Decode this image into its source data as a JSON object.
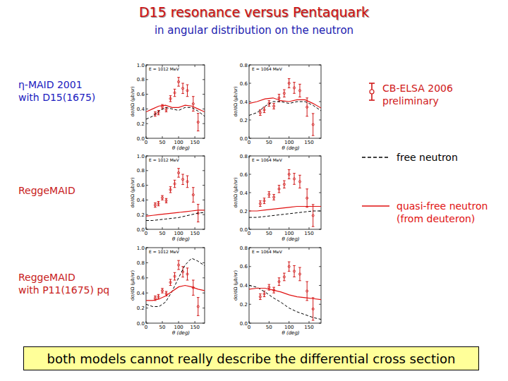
{
  "header": {
    "title": "D15 resonance versus Pentaquark",
    "subtitle": "in angular distribution on the neutron"
  },
  "row_labels": [
    [
      "η-MAID 2001",
      "with D15(1675)"
    ],
    [
      "ReggeMAID"
    ],
    [
      "ReggeMAID",
      "with P11(1675) pq"
    ]
  ],
  "footer": "both models cannot really describe the differential cross section",
  "chart_data": [
    {
      "type": "scatter",
      "title": "E = 1012 MeV",
      "x_label": "θ (deg)",
      "y_label": "dσ/dΩ (μb/sr)",
      "xlim": [
        0,
        180
      ],
      "xticks": [
        0,
        50,
        100,
        150
      ],
      "ylim": [
        0,
        1.0
      ],
      "yticks": [
        {
          "value": 0,
          "label": "0.0"
        },
        0.2,
        0.4,
        0.6,
        0.8,
        {
          "value": 1,
          "label": "1.0"
        }
      ],
      "series": [
        {
          "name": "CB-ELSA 2006 preliminary",
          "type": "scatter",
          "marker": "circle",
          "color": "#d01818",
          "x": [
            28,
            38,
            50,
            62,
            75,
            88,
            100,
            113,
            127,
            145,
            160
          ],
          "values": [
            0.33,
            0.35,
            0.43,
            0.39,
            0.54,
            0.62,
            0.77,
            0.68,
            0.65,
            0.47,
            0.22
          ],
          "errors": [
            0.03,
            0.03,
            0.03,
            0.03,
            0.04,
            0.05,
            0.06,
            0.07,
            0.08,
            0.1,
            0.12
          ]
        },
        {
          "name": "free neutron",
          "type": "line",
          "line_style": "dashed",
          "color": "#000000",
          "x": [
            0,
            20,
            40,
            60,
            80,
            100,
            120,
            140,
            160,
            180
          ],
          "values": [
            0.26,
            0.3,
            0.37,
            0.42,
            0.4,
            0.38,
            0.42,
            0.42,
            0.37,
            0.3
          ]
        },
        {
          "name": "quasi-free neutron (from deuteron)",
          "type": "line",
          "line_style": "solid",
          "color": "#e01010",
          "x": [
            0,
            20,
            40,
            60,
            80,
            100,
            120,
            140,
            160,
            180
          ],
          "values": [
            0.36,
            0.4,
            0.44,
            0.45,
            0.42,
            0.42,
            0.45,
            0.44,
            0.4,
            0.36
          ]
        }
      ]
    },
    {
      "type": "scatter",
      "title": "E = 1064 MeV",
      "x_label": "θ (deg)",
      "y_label": "dσ/dΩ (μb/sr)",
      "xlim": [
        0,
        180
      ],
      "xticks": [
        0,
        50,
        100,
        150
      ],
      "ylim": [
        0,
        0.8
      ],
      "yticks": [
        {
          "value": 0,
          "label": "0.0"
        },
        0.2,
        0.4,
        0.6,
        0.8
      ],
      "series": [
        {
          "type": "scatter",
          "marker": "circle",
          "color": "#d01818",
          "x": [
            28,
            38,
            50,
            62,
            75,
            88,
            100,
            113,
            127,
            145,
            160
          ],
          "values": [
            0.28,
            0.31,
            0.38,
            0.35,
            0.44,
            0.49,
            0.6,
            0.55,
            0.52,
            0.34,
            0.15
          ],
          "errors": [
            0.03,
            0.03,
            0.03,
            0.03,
            0.04,
            0.04,
            0.05,
            0.06,
            0.07,
            0.1,
            0.12
          ]
        },
        {
          "type": "line",
          "line_style": "dashed",
          "color": "#000000",
          "x": [
            0,
            20,
            40,
            60,
            80,
            100,
            120,
            140,
            160,
            180
          ],
          "values": [
            0.25,
            0.28,
            0.35,
            0.4,
            0.4,
            0.38,
            0.4,
            0.4,
            0.36,
            0.3
          ]
        },
        {
          "type": "line",
          "line_style": "solid",
          "color": "#e01010",
          "x": [
            0,
            20,
            40,
            60,
            80,
            100,
            120,
            140,
            160,
            180
          ],
          "values": [
            0.38,
            0.4,
            0.43,
            0.44,
            0.41,
            0.4,
            0.42,
            0.42,
            0.38,
            0.33
          ]
        }
      ]
    },
    {
      "type": "scatter",
      "title": "E = 1012 MeV",
      "x_label": "θ (deg)",
      "y_label": "dσ/dΩ (μb/sr)",
      "xlim": [
        0,
        180
      ],
      "xticks": [
        0,
        50,
        100,
        150
      ],
      "ylim": [
        0,
        1.0
      ],
      "yticks": [
        {
          "value": 0,
          "label": "0.0"
        },
        0.2,
        0.4,
        0.6,
        0.8,
        {
          "value": 1,
          "label": "1.0"
        }
      ],
      "series": [
        {
          "type": "scatter",
          "marker": "circle",
          "color": "#d01818",
          "x": [
            28,
            38,
            50,
            62,
            75,
            88,
            100,
            113,
            127,
            145,
            160
          ],
          "values": [
            0.33,
            0.35,
            0.43,
            0.39,
            0.54,
            0.62,
            0.77,
            0.68,
            0.65,
            0.47,
            0.22
          ],
          "errors": [
            0.03,
            0.03,
            0.03,
            0.03,
            0.04,
            0.05,
            0.06,
            0.07,
            0.08,
            0.1,
            0.12
          ]
        },
        {
          "type": "line",
          "line_style": "dashed",
          "color": "#000000",
          "x": [
            0,
            20,
            40,
            60,
            80,
            100,
            120,
            140,
            160,
            180
          ],
          "values": [
            0.12,
            0.12,
            0.13,
            0.14,
            0.15,
            0.16,
            0.18,
            0.2,
            0.22,
            0.23
          ]
        },
        {
          "type": "line",
          "line_style": "solid",
          "color": "#e01010",
          "x": [
            0,
            20,
            40,
            60,
            80,
            100,
            120,
            140,
            160,
            180
          ],
          "values": [
            0.18,
            0.19,
            0.2,
            0.21,
            0.22,
            0.23,
            0.24,
            0.25,
            0.26,
            0.26
          ]
        }
      ]
    },
    {
      "type": "scatter",
      "title": "E = 1064 MeV",
      "x_label": "θ (deg)",
      "y_label": "dσ/dΩ (μb/sr)",
      "xlim": [
        0,
        180
      ],
      "xticks": [
        0,
        50,
        100,
        150
      ],
      "ylim": [
        0,
        0.8
      ],
      "yticks": [
        {
          "value": 0,
          "label": "0.0"
        },
        0.2,
        0.4,
        0.6,
        0.8
      ],
      "series": [
        {
          "type": "scatter",
          "marker": "circle",
          "color": "#d01818",
          "x": [
            28,
            38,
            50,
            62,
            75,
            88,
            100,
            113,
            127,
            145,
            160
          ],
          "values": [
            0.28,
            0.31,
            0.38,
            0.35,
            0.44,
            0.49,
            0.6,
            0.55,
            0.52,
            0.34,
            0.15
          ],
          "errors": [
            0.03,
            0.03,
            0.03,
            0.03,
            0.04,
            0.04,
            0.05,
            0.06,
            0.07,
            0.1,
            0.12
          ]
        },
        {
          "type": "line",
          "line_style": "dashed",
          "color": "#000000",
          "x": [
            0,
            20,
            40,
            60,
            80,
            100,
            120,
            140,
            160,
            180
          ],
          "values": [
            0.13,
            0.13,
            0.14,
            0.15,
            0.16,
            0.17,
            0.18,
            0.19,
            0.2,
            0.2
          ]
        },
        {
          "type": "line",
          "line_style": "solid",
          "color": "#e01010",
          "x": [
            0,
            20,
            40,
            60,
            80,
            100,
            120,
            140,
            160,
            180
          ],
          "values": [
            0.2,
            0.2,
            0.21,
            0.22,
            0.23,
            0.24,
            0.25,
            0.25,
            0.25,
            0.25
          ]
        }
      ]
    },
    {
      "type": "scatter",
      "title": "E = 1012 MeV",
      "x_label": "θ (deg)",
      "y_label": "dσ/dΩ (μb/sr)",
      "xlim": [
        0,
        180
      ],
      "xticks": [
        0,
        50,
        100,
        150
      ],
      "ylim": [
        0,
        1.0
      ],
      "yticks": [
        {
          "value": 0,
          "label": "0.0"
        },
        0.2,
        0.4,
        0.6,
        0.8,
        {
          "value": 1,
          "label": "1.0"
        }
      ],
      "series": [
        {
          "type": "scatter",
          "marker": "circle",
          "color": "#d01818",
          "x": [
            28,
            38,
            50,
            62,
            75,
            88,
            100,
            113,
            127,
            145,
            160
          ],
          "values": [
            0.33,
            0.35,
            0.43,
            0.39,
            0.54,
            0.62,
            0.77,
            0.68,
            0.65,
            0.47,
            0.22
          ],
          "errors": [
            0.03,
            0.03,
            0.03,
            0.03,
            0.04,
            0.05,
            0.06,
            0.07,
            0.08,
            0.1,
            0.12
          ]
        },
        {
          "type": "line",
          "line_style": "dashed",
          "color": "#000000",
          "x": [
            0,
            20,
            40,
            60,
            80,
            100,
            120,
            140,
            160,
            180
          ],
          "values": [
            0.25,
            0.22,
            0.22,
            0.28,
            0.42,
            0.6,
            0.77,
            0.86,
            0.82,
            0.76
          ]
        },
        {
          "type": "line",
          "line_style": "solid",
          "color": "#e01010",
          "x": [
            0,
            20,
            40,
            60,
            80,
            100,
            120,
            140,
            160,
            180
          ],
          "values": [
            0.3,
            0.3,
            0.32,
            0.36,
            0.42,
            0.48,
            0.5,
            0.48,
            0.45,
            0.43
          ]
        }
      ]
    },
    {
      "type": "scatter",
      "title": "E = 1064 MeV",
      "x_label": "θ (deg)",
      "y_label": "dσ/dΩ (μb/sr)",
      "xlim": [
        0,
        180
      ],
      "xticks": [
        0,
        50,
        100,
        150
      ],
      "ylim": [
        0,
        0.8
      ],
      "yticks": [
        {
          "value": 0,
          "label": "0.0"
        },
        0.2,
        0.4,
        0.6,
        0.8
      ],
      "series": [
        {
          "type": "scatter",
          "marker": "circle",
          "color": "#d01818",
          "x": [
            28,
            38,
            50,
            62,
            75,
            88,
            100,
            113,
            127,
            145,
            160
          ],
          "values": [
            0.28,
            0.31,
            0.38,
            0.35,
            0.44,
            0.49,
            0.6,
            0.55,
            0.52,
            0.34,
            0.15
          ],
          "errors": [
            0.03,
            0.03,
            0.03,
            0.03,
            0.04,
            0.04,
            0.05,
            0.06,
            0.07,
            0.1,
            0.12
          ]
        },
        {
          "type": "line",
          "line_style": "dashed",
          "color": "#000000",
          "x": [
            0,
            20,
            40,
            60,
            80,
            100,
            120,
            140,
            160,
            180
          ],
          "values": [
            0.4,
            0.38,
            0.33,
            0.27,
            0.22,
            0.16,
            0.12,
            0.09,
            0.06,
            0.04
          ]
        },
        {
          "type": "line",
          "line_style": "solid",
          "color": "#e01010",
          "x": [
            0,
            20,
            40,
            60,
            80,
            100,
            120,
            140,
            160,
            180
          ],
          "values": [
            0.36,
            0.37,
            0.37,
            0.35,
            0.33,
            0.3,
            0.28,
            0.27,
            0.26,
            0.25
          ]
        }
      ]
    }
  ]
}
